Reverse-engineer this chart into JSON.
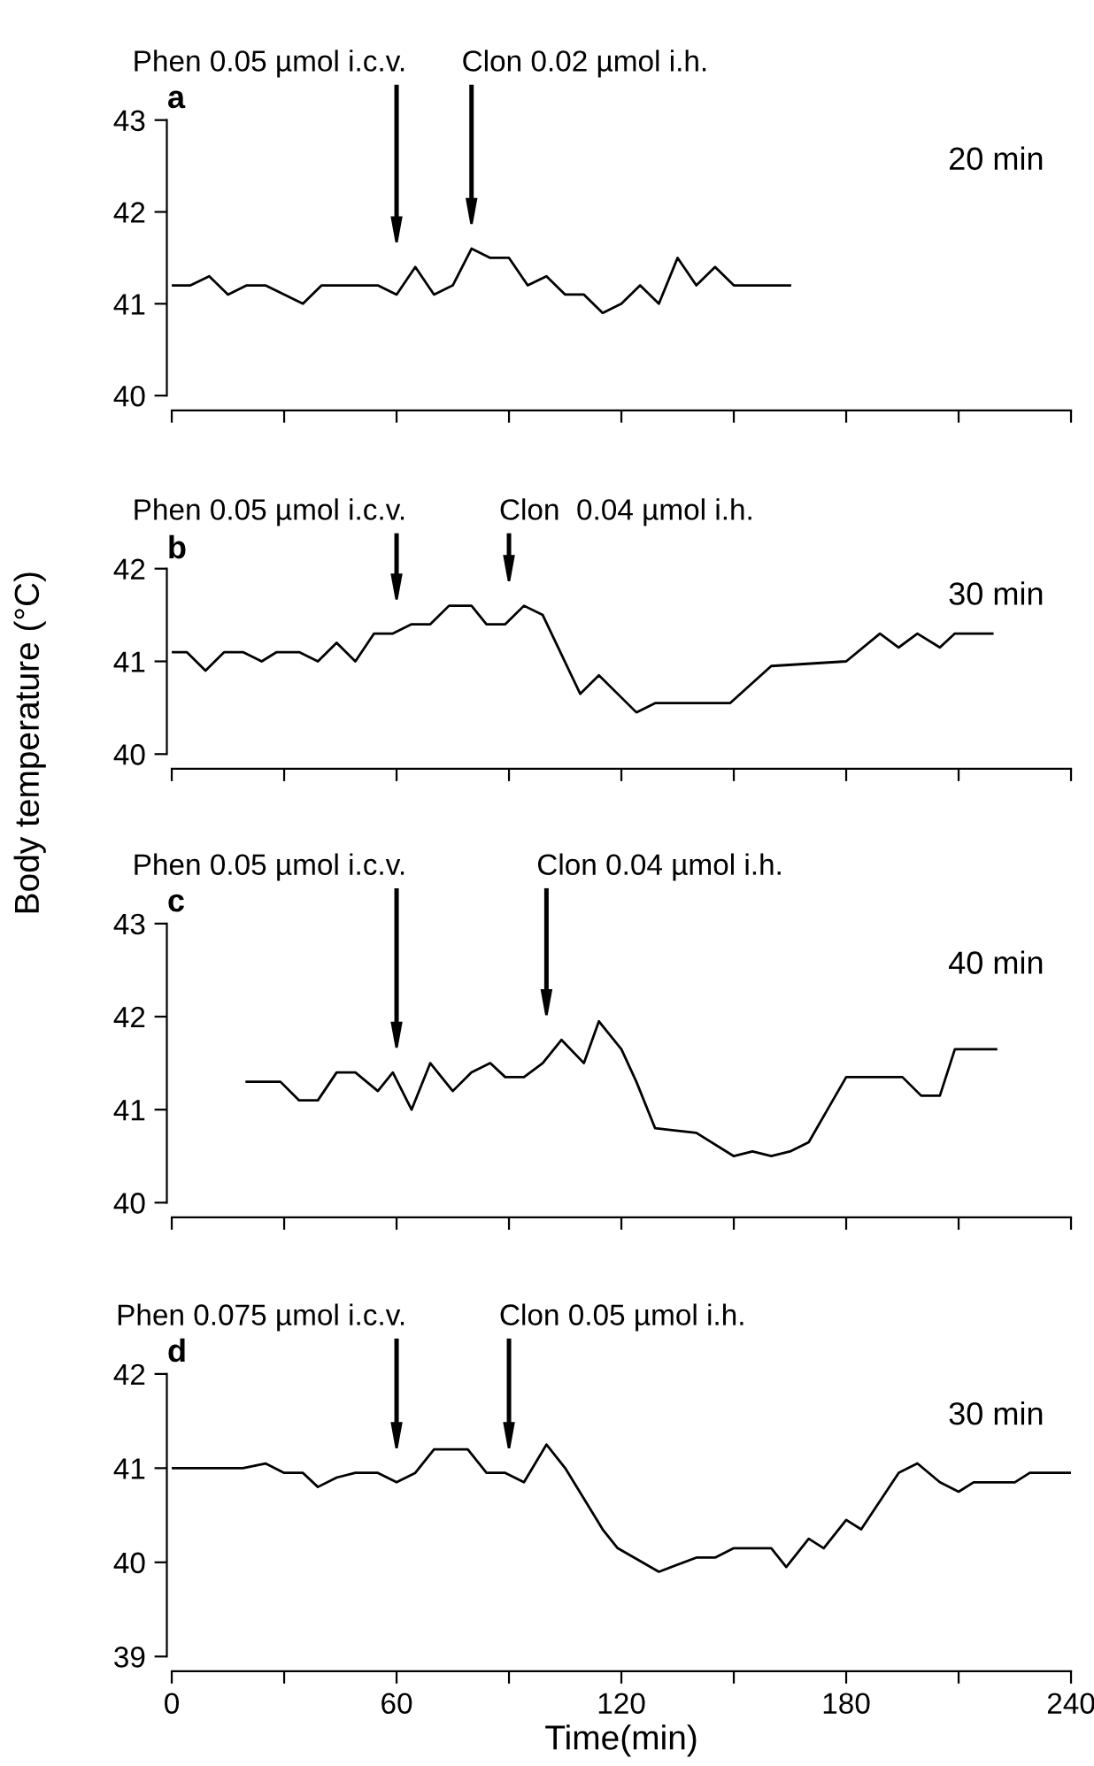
{
  "chart_data": [
    {
      "type": "line",
      "title": "a",
      "xlim": [
        0,
        240
      ],
      "ylim": [
        40,
        43
      ],
      "yticks": [
        40,
        41,
        42,
        43
      ],
      "tick_labels": "y",
      "grid": false,
      "xticks": [
        0,
        {
          "value": 30,
          "label": null
        },
        60,
        {
          "value": 90,
          "label": null
        },
        120,
        {
          "value": 150,
          "label": null
        },
        180,
        {
          "value": 210,
          "label": null
        },
        240
      ],
      "series": [
        {
          "color": "#000000",
          "x": [
            0,
            5,
            10,
            15,
            20,
            25,
            35,
            40,
            55,
            60,
            65,
            70,
            75,
            80,
            85,
            90,
            95,
            100,
            105,
            110,
            115,
            120,
            125,
            130,
            135,
            140,
            145,
            150,
            165
          ],
          "values": [
            41.2,
            41.2,
            41.3,
            41.1,
            41.2,
            41.2,
            41.0,
            41.2,
            41.2,
            41.1,
            41.4,
            41.1,
            41.2,
            41.6,
            41.5,
            41.5,
            41.2,
            41.3,
            41.1,
            41.1,
            40.9,
            41.0,
            41.2,
            41.0,
            41.5,
            41.2,
            41.4,
            41.2,
            41.2
          ]
        }
      ],
      "ref_lines": [
        {
          "axis": "x",
          "value": 60,
          "label": "Phen 0.05 µmol i.c.v."
        },
        {
          "axis": "x",
          "value": 80,
          "label": "Clon 0.02 µmol i.h."
        }
      ],
      "annotations": [
        "20 min"
      ]
    },
    {
      "type": "line",
      "title": "b",
      "xlim": [
        0,
        240
      ],
      "ylim": [
        40,
        42
      ],
      "yticks": [
        40,
        41,
        42
      ],
      "tick_labels": "y",
      "grid": false,
      "ylabel": "Body temperature (°C)",
      "xticks": [
        0,
        {
          "value": 30,
          "label": null
        },
        60,
        {
          "value": 90,
          "label": null
        },
        120,
        {
          "value": 150,
          "label": null
        },
        180,
        {
          "value": 210,
          "label": null
        },
        240
      ],
      "series": [
        {
          "color": "#000000",
          "x": [
            0,
            4,
            9,
            14,
            19,
            24,
            28,
            29,
            34,
            39,
            44,
            49,
            54,
            59,
            64,
            69,
            74,
            80,
            84,
            89,
            94,
            99,
            109,
            114,
            124,
            129,
            149,
            160,
            180,
            189,
            194,
            199,
            205,
            209,
            219
          ],
          "values": [
            41.1,
            41.1,
            40.9,
            41.1,
            41.1,
            41.0,
            41.1,
            41.1,
            41.1,
            41.0,
            41.2,
            41.0,
            41.3,
            41.3,
            41.4,
            41.4,
            41.6,
            41.6,
            41.4,
            41.4,
            41.6,
            41.5,
            40.65,
            40.85,
            40.45,
            40.55,
            40.55,
            40.95,
            41.0,
            41.3,
            41.15,
            41.3,
            41.15,
            41.3,
            41.3
          ]
        }
      ],
      "ref_lines": [
        {
          "axis": "x",
          "value": 60,
          "label": "Phen 0.05 µmol i.c.v."
        },
        {
          "axis": "x",
          "value": 90,
          "label": "Clon  0.04 µmol i.h."
        }
      ],
      "annotations": [
        "30 min"
      ]
    },
    {
      "type": "line",
      "title": "c",
      "xlim": [
        0,
        240
      ],
      "ylim": [
        40,
        43
      ],
      "yticks": [
        40,
        41,
        42,
        43
      ],
      "tick_labels": "y",
      "grid": false,
      "xticks": [
        0,
        {
          "value": 30,
          "label": null
        },
        60,
        {
          "value": 90,
          "label": null
        },
        120,
        {
          "value": 150,
          "label": null
        },
        180,
        {
          "value": 210,
          "label": null
        },
        240
      ],
      "series": [
        {
          "color": "#000000",
          "x": [
            20,
            29,
            34,
            39,
            44,
            49,
            55,
            59,
            64,
            69,
            75,
            80,
            85,
            89,
            94,
            99,
            104,
            110,
            114,
            120,
            124,
            129,
            140,
            150,
            155,
            160,
            165,
            170,
            175,
            180,
            195,
            200,
            205,
            209,
            220
          ],
          "values": [
            41.3,
            41.3,
            41.1,
            41.1,
            41.4,
            41.4,
            41.2,
            41.4,
            41.0,
            41.5,
            41.2,
            41.4,
            41.5,
            41.35,
            41.35,
            41.5,
            41.75,
            41.5,
            41.95,
            41.65,
            41.3,
            40.8,
            40.75,
            40.5,
            40.55,
            40.5,
            40.55,
            40.65,
            41.0,
            41.35,
            41.35,
            41.15,
            41.15,
            41.65,
            41.65
          ]
        }
      ],
      "ref_lines": [
        {
          "axis": "x",
          "value": 60,
          "label": "Phen 0.05 µmol i.c.v."
        },
        {
          "axis": "x",
          "value": 100,
          "label": "Clon 0.04 µmol i.h."
        }
      ],
      "annotations": [
        "40 min"
      ]
    },
    {
      "type": "line",
      "title": "d",
      "xlim": [
        0,
        240
      ],
      "ylim": [
        39,
        42
      ],
      "yticks": [
        39,
        40,
        41,
        42
      ],
      "grid": false,
      "xlabel": "Time(min)",
      "xticks": [
        0,
        {
          "value": 30,
          "label": null
        },
        60,
        {
          "value": 90,
          "label": null
        },
        120,
        {
          "value": 150,
          "label": null
        },
        180,
        {
          "value": 210,
          "label": null
        },
        240
      ],
      "series": [
        {
          "color": "#000000",
          "x": [
            0,
            19,
            25,
            30,
            35,
            39,
            44,
            49,
            55,
            60,
            65,
            70,
            79,
            84,
            89,
            94,
            100,
            105,
            115,
            119,
            130,
            140,
            145,
            150,
            160,
            164,
            170,
            174,
            180,
            184,
            194,
            199,
            205,
            210,
            214,
            225,
            229,
            240
          ],
          "values": [
            41.0,
            41.0,
            41.05,
            40.95,
            40.95,
            40.8,
            40.9,
            40.95,
            40.95,
            40.85,
            40.95,
            41.2,
            41.2,
            40.95,
            40.95,
            40.85,
            41.25,
            41.0,
            40.35,
            40.15,
            39.9,
            40.05,
            40.05,
            40.15,
            40.15,
            39.95,
            40.25,
            40.15,
            40.45,
            40.35,
            40.95,
            41.05,
            40.85,
            40.75,
            40.85,
            40.85,
            40.95,
            40.95
          ]
        }
      ],
      "ref_lines": [
        {
          "axis": "x",
          "value": 60,
          "label": "Phen 0.075 µmol i.c.v."
        },
        {
          "axis": "x",
          "value": 90,
          "label": "Clon 0.05 µmol i.h."
        }
      ],
      "annotations": [
        "30 min"
      ]
    }
  ]
}
